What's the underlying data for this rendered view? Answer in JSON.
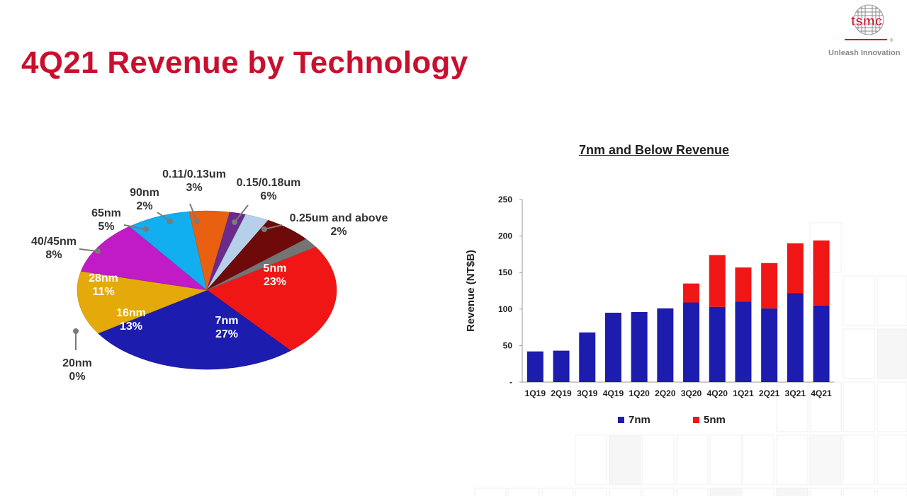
{
  "slide": {
    "title": "4Q21 Revenue by Technology",
    "logo_text": "tsmc",
    "tagline": "Unleash Innovation",
    "accent_color": "#c8102e"
  },
  "chart_data": [
    {
      "type": "pie",
      "title": "",
      "style": "3d-tilted",
      "slices": [
        {
          "name": "5nm",
          "pct_label": "23%",
          "value": 23,
          "color": "#f11616"
        },
        {
          "name": "7nm",
          "pct_label": "27%",
          "value": 27,
          "color": "#1c1cae"
        },
        {
          "name": "20nm",
          "pct_label": "0%",
          "value": 0,
          "color": "#8a6a10"
        },
        {
          "name": "16nm",
          "pct_label": "13%",
          "value": 13,
          "color": "#e3aa0a"
        },
        {
          "name": "28nm",
          "pct_label": "11%",
          "value": 11,
          "color": "#c01bc4"
        },
        {
          "name": "40/45nm",
          "pct_label": "8%",
          "value": 8,
          "color": "#11aef0"
        },
        {
          "name": "65nm",
          "pct_label": "5%",
          "value": 5,
          "color": "#e86010"
        },
        {
          "name": "90nm",
          "pct_label": "2%",
          "value": 2,
          "color": "#6b2a8c"
        },
        {
          "name": "0.11/0.13um",
          "pct_label": "3%",
          "value": 3,
          "color": "#b6d0ea"
        },
        {
          "name": "0.15/0.18um",
          "pct_label": "6%",
          "value": 6,
          "color": "#6e0a0a"
        },
        {
          "name": "0.25um and above",
          "pct_label": "2%",
          "value": 2,
          "color": "#747474"
        }
      ]
    },
    {
      "type": "bar",
      "stacked": true,
      "title": "7nm and Below Revenue",
      "ylabel": "Revenue (NT$B)",
      "xlabel": "",
      "ylim": [
        0,
        250
      ],
      "yticks": [
        "-",
        "50",
        "100",
        "150",
        "200",
        "250"
      ],
      "categories": [
        "1Q19",
        "2Q19",
        "3Q19",
        "4Q19",
        "1Q20",
        "2Q20",
        "3Q20",
        "4Q20",
        "1Q21",
        "2Q21",
        "3Q21",
        "4Q21"
      ],
      "series": [
        {
          "name": "7nm",
          "color": "#1c1cae",
          "values": [
            42,
            43,
            68,
            95,
            96,
            101,
            109,
            103,
            110,
            101,
            122,
            105
          ]
        },
        {
          "name": "5nm",
          "color": "#f11616",
          "values": [
            0,
            0,
            0,
            0,
            0,
            0,
            26,
            71,
            47,
            62,
            68,
            89
          ]
        }
      ],
      "legend_position": "bottom",
      "grid": false
    }
  ]
}
